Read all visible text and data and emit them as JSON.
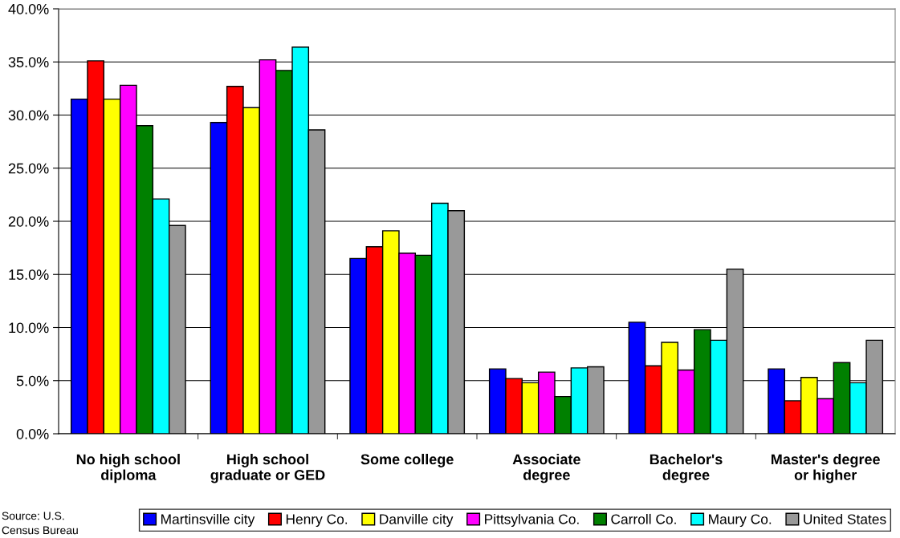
{
  "chart_data": {
    "type": "bar",
    "categories": [
      "No high school\ndiploma",
      "High school\ngraduate or GED",
      "Some college",
      "Associate\ndegree",
      "Bachelor's\ndegree",
      "Master's degree\nor higher"
    ],
    "series": [
      {
        "name": "Martinsville city",
        "color": "#0000ff",
        "values": [
          31.5,
          29.3,
          16.5,
          6.1,
          10.5,
          6.1
        ]
      },
      {
        "name": "Henry Co.",
        "color": "#ff0000",
        "values": [
          35.1,
          32.7,
          17.6,
          5.2,
          6.4,
          3.1
        ]
      },
      {
        "name": "Danville city",
        "color": "#ffff00",
        "values": [
          31.5,
          30.7,
          19.1,
          4.8,
          8.6,
          5.3
        ]
      },
      {
        "name": "Pittsylvania Co.",
        "color": "#ff00ff",
        "values": [
          32.8,
          35.2,
          17.0,
          5.8,
          6.0,
          3.3
        ]
      },
      {
        "name": "Carroll Co.",
        "color": "#008000",
        "values": [
          29.0,
          34.2,
          16.8,
          3.5,
          9.8,
          6.7
        ]
      },
      {
        "name": "Maury Co.",
        "color": "#00ffff",
        "values": [
          22.1,
          36.4,
          21.7,
          6.2,
          8.8,
          4.8
        ]
      },
      {
        "name": "United States",
        "color": "#999999",
        "values": [
          19.6,
          28.6,
          21.0,
          6.3,
          15.5,
          8.8
        ]
      }
    ],
    "ylim": [
      0,
      40
    ],
    "yticks": [
      {
        "value": 0,
        "label": "0.0%"
      },
      {
        "value": 5,
        "label": "5.0%"
      },
      {
        "value": 10,
        "label": "10.0%"
      },
      {
        "value": 15,
        "label": "15.0%"
      },
      {
        "value": 20,
        "label": "20.0%"
      },
      {
        "value": 25,
        "label": "25.0%"
      },
      {
        "value": 30,
        "label": "30.0%"
      },
      {
        "value": 35,
        "label": "35.0%"
      },
      {
        "value": 40,
        "label": "40.0%"
      }
    ],
    "grid": "y",
    "legend": "bottom",
    "annotations": [
      "Source: U.S.\nCensus Bureau"
    ]
  }
}
